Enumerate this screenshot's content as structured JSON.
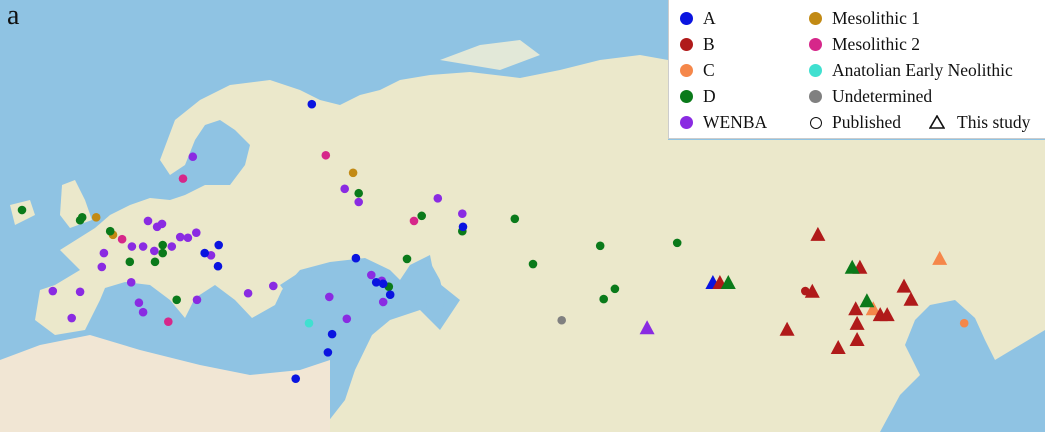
{
  "panel_label": "a",
  "colors": {
    "A": "#0a14e0",
    "B": "#b01a1a",
    "C": "#f5874a",
    "D": "#0a7a1a",
    "WENBA": "#8a2be2",
    "Mesolithic 1": "#c28a14",
    "Mesolithic 2": "#d6278a",
    "Anatolian Early Neolithic": "#40e0d0",
    "Undetermined": "#808080",
    "ocean": "#8fc3e3",
    "land": "#ebe8cb",
    "desert": "#f1e6d4"
  },
  "legend": {
    "groups": [
      "A",
      "B",
      "C",
      "D",
      "WENBA",
      "Mesolithic 1",
      "Mesolithic 2",
      "Anatolian Early Neolithic",
      "Undetermined"
    ],
    "published_label": "Published",
    "this_study_label": "This study"
  },
  "points": {
    "published": [
      {
        "group": "WENBA",
        "lon": 16.4,
        "lat": 60.3
      },
      {
        "group": "WENBA",
        "lon": 38.1,
        "lat": 55.9
      },
      {
        "group": "WENBA",
        "lon": 40.1,
        "lat": 54.1
      },
      {
        "group": "WENBA",
        "lon": 51.4,
        "lat": 54.6
      },
      {
        "group": "WENBA",
        "lon": 54.9,
        "lat": 52.5
      },
      {
        "group": "WENBA",
        "lon": 10.0,
        "lat": 51.5
      },
      {
        "group": "WENBA",
        "lon": 11.3,
        "lat": 50.7
      },
      {
        "group": "WENBA",
        "lon": 12.0,
        "lat": 51.1
      },
      {
        "group": "WENBA",
        "lon": 14.6,
        "lat": 49.3
      },
      {
        "group": "WENBA",
        "lon": 15.7,
        "lat": 49.2
      },
      {
        "group": "WENBA",
        "lon": 16.9,
        "lat": 49.9
      },
      {
        "group": "WENBA",
        "lon": 7.7,
        "lat": 48.0
      },
      {
        "group": "WENBA",
        "lon": 9.3,
        "lat": 48.0
      },
      {
        "group": "WENBA",
        "lon": 10.9,
        "lat": 47.4
      },
      {
        "group": "WENBA",
        "lon": 13.4,
        "lat": 48.0
      },
      {
        "group": "WENBA",
        "lon": 19.0,
        "lat": 46.8
      },
      {
        "group": "WENBA",
        "lon": 3.7,
        "lat": 47.1
      },
      {
        "group": "WENBA",
        "lon": 3.4,
        "lat": 45.2
      },
      {
        "group": "WENBA",
        "lon": 7.6,
        "lat": 43.1
      },
      {
        "group": "WENBA",
        "lon": -3.6,
        "lat": 41.9
      },
      {
        "group": "WENBA",
        "lon": 0.3,
        "lat": 41.8
      },
      {
        "group": "WENBA",
        "lon": 8.7,
        "lat": 40.3
      },
      {
        "group": "WENBA",
        "lon": 9.3,
        "lat": 39.0
      },
      {
        "group": "WENBA",
        "lon": -0.9,
        "lat": 38.2
      },
      {
        "group": "WENBA",
        "lon": 17.0,
        "lat": 40.7
      },
      {
        "group": "WENBA",
        "lon": 24.3,
        "lat": 41.6
      },
      {
        "group": "WENBA",
        "lon": 27.9,
        "lat": 42.6
      },
      {
        "group": "WENBA",
        "lon": 35.9,
        "lat": 41.1
      },
      {
        "group": "WENBA",
        "lon": 41.9,
        "lat": 44.1
      },
      {
        "group": "WENBA",
        "lon": 43.4,
        "lat": 43.3
      },
      {
        "group": "WENBA",
        "lon": 43.6,
        "lat": 40.4
      },
      {
        "group": "WENBA",
        "lon": 38.4,
        "lat": 38.1
      },
      {
        "group": "Mesolithic 2",
        "lon": 15.0,
        "lat": 57.3
      },
      {
        "group": "Mesolithic 2",
        "lon": 35.4,
        "lat": 60.5
      },
      {
        "group": "Mesolithic 2",
        "lon": 48.0,
        "lat": 51.5
      },
      {
        "group": "Mesolithic 2",
        "lon": 6.3,
        "lat": 49.0
      },
      {
        "group": "Mesolithic 2",
        "lon": 12.9,
        "lat": 37.7
      },
      {
        "group": "Mesolithic 1",
        "lon": 2.6,
        "lat": 52.0
      },
      {
        "group": "Mesolithic 1",
        "lon": 39.3,
        "lat": 58.1
      },
      {
        "group": "Mesolithic 1",
        "lon": 5.0,
        "lat": 49.6
      },
      {
        "group": "D",
        "lon": -8.0,
        "lat": 53.0
      },
      {
        "group": "D",
        "lon": 0.3,
        "lat": 51.6
      },
      {
        "group": "D",
        "lon": 0.6,
        "lat": 52.0
      },
      {
        "group": "D",
        "lon": 40.1,
        "lat": 55.3
      },
      {
        "group": "D",
        "lon": 49.1,
        "lat": 52.2
      },
      {
        "group": "D",
        "lon": 54.9,
        "lat": 50.1
      },
      {
        "group": "D",
        "lon": 4.6,
        "lat": 50.1
      },
      {
        "group": "D",
        "lon": 12.1,
        "lat": 48.2
      },
      {
        "group": "D",
        "lon": 12.1,
        "lat": 47.1
      },
      {
        "group": "D",
        "lon": 7.4,
        "lat": 45.9
      },
      {
        "group": "D",
        "lon": 11.0,
        "lat": 45.9
      },
      {
        "group": "D",
        "lon": 47.0,
        "lat": 46.3
      },
      {
        "group": "D",
        "lon": 44.4,
        "lat": 42.5
      },
      {
        "group": "D",
        "lon": 14.1,
        "lat": 40.7
      },
      {
        "group": "D",
        "lon": 62.4,
        "lat": 51.8
      },
      {
        "group": "D",
        "lon": 74.6,
        "lat": 48.1
      },
      {
        "group": "D",
        "lon": 85.6,
        "lat": 48.5
      },
      {
        "group": "D",
        "lon": 65.0,
        "lat": 45.6
      },
      {
        "group": "D",
        "lon": 76.7,
        "lat": 42.2
      },
      {
        "group": "D",
        "lon": 75.1,
        "lat": 40.8
      },
      {
        "group": "A",
        "lon": 33.4,
        "lat": 67.5
      },
      {
        "group": "A",
        "lon": 20.1,
        "lat": 48.2
      },
      {
        "group": "A",
        "lon": 18.1,
        "lat": 47.1
      },
      {
        "group": "A",
        "lon": 20.0,
        "lat": 45.3
      },
      {
        "group": "A",
        "lon": 39.7,
        "lat": 46.4
      },
      {
        "group": "A",
        "lon": 42.6,
        "lat": 43.1
      },
      {
        "group": "A",
        "lon": 43.6,
        "lat": 42.9
      },
      {
        "group": "A",
        "lon": 44.6,
        "lat": 41.4
      },
      {
        "group": "A",
        "lon": 36.3,
        "lat": 36.0
      },
      {
        "group": "A",
        "lon": 35.7,
        "lat": 33.5
      },
      {
        "group": "A",
        "lon": 31.1,
        "lat": 29.9
      },
      {
        "group": "A",
        "lon": 55.0,
        "lat": 50.7
      },
      {
        "group": "Anatolian Early Neolithic",
        "lon": 33.0,
        "lat": 37.5
      },
      {
        "group": "Undetermined",
        "lon": 69.1,
        "lat": 37.9
      },
      {
        "group": "C",
        "lon": 126.6,
        "lat": 37.5
      },
      {
        "group": "B",
        "lon": 103.9,
        "lat": 41.9
      }
    ],
    "this_study": [
      {
        "group": "A",
        "lon": 90.7,
        "lat": 43.0
      },
      {
        "group": "B",
        "lon": 91.7,
        "lat": 43.0
      },
      {
        "group": "D",
        "lon": 92.9,
        "lat": 43.0
      },
      {
        "group": "WENBA",
        "lon": 81.3,
        "lat": 36.8
      },
      {
        "group": "B",
        "lon": 105.7,
        "lat": 49.6
      },
      {
        "group": "B",
        "lon": 111.7,
        "lat": 45.1
      },
      {
        "group": "D",
        "lon": 110.6,
        "lat": 45.1
      },
      {
        "group": "C",
        "lon": 123.1,
        "lat": 46.3
      },
      {
        "group": "B",
        "lon": 104.9,
        "lat": 41.8
      },
      {
        "group": "B",
        "lon": 118.0,
        "lat": 42.5
      },
      {
        "group": "B",
        "lon": 119.0,
        "lat": 40.7
      },
      {
        "group": "B",
        "lon": 111.1,
        "lat": 39.4
      },
      {
        "group": "C",
        "lon": 113.6,
        "lat": 39.4
      },
      {
        "group": "B",
        "lon": 114.6,
        "lat": 38.6
      },
      {
        "group": "B",
        "lon": 115.6,
        "lat": 38.6
      },
      {
        "group": "D",
        "lon": 112.7,
        "lat": 40.5
      },
      {
        "group": "B",
        "lon": 111.3,
        "lat": 37.4
      },
      {
        "group": "B",
        "lon": 111.3,
        "lat": 35.2
      },
      {
        "group": "B",
        "lon": 101.3,
        "lat": 36.6
      },
      {
        "group": "B",
        "lon": 108.6,
        "lat": 34.1
      }
    ]
  }
}
